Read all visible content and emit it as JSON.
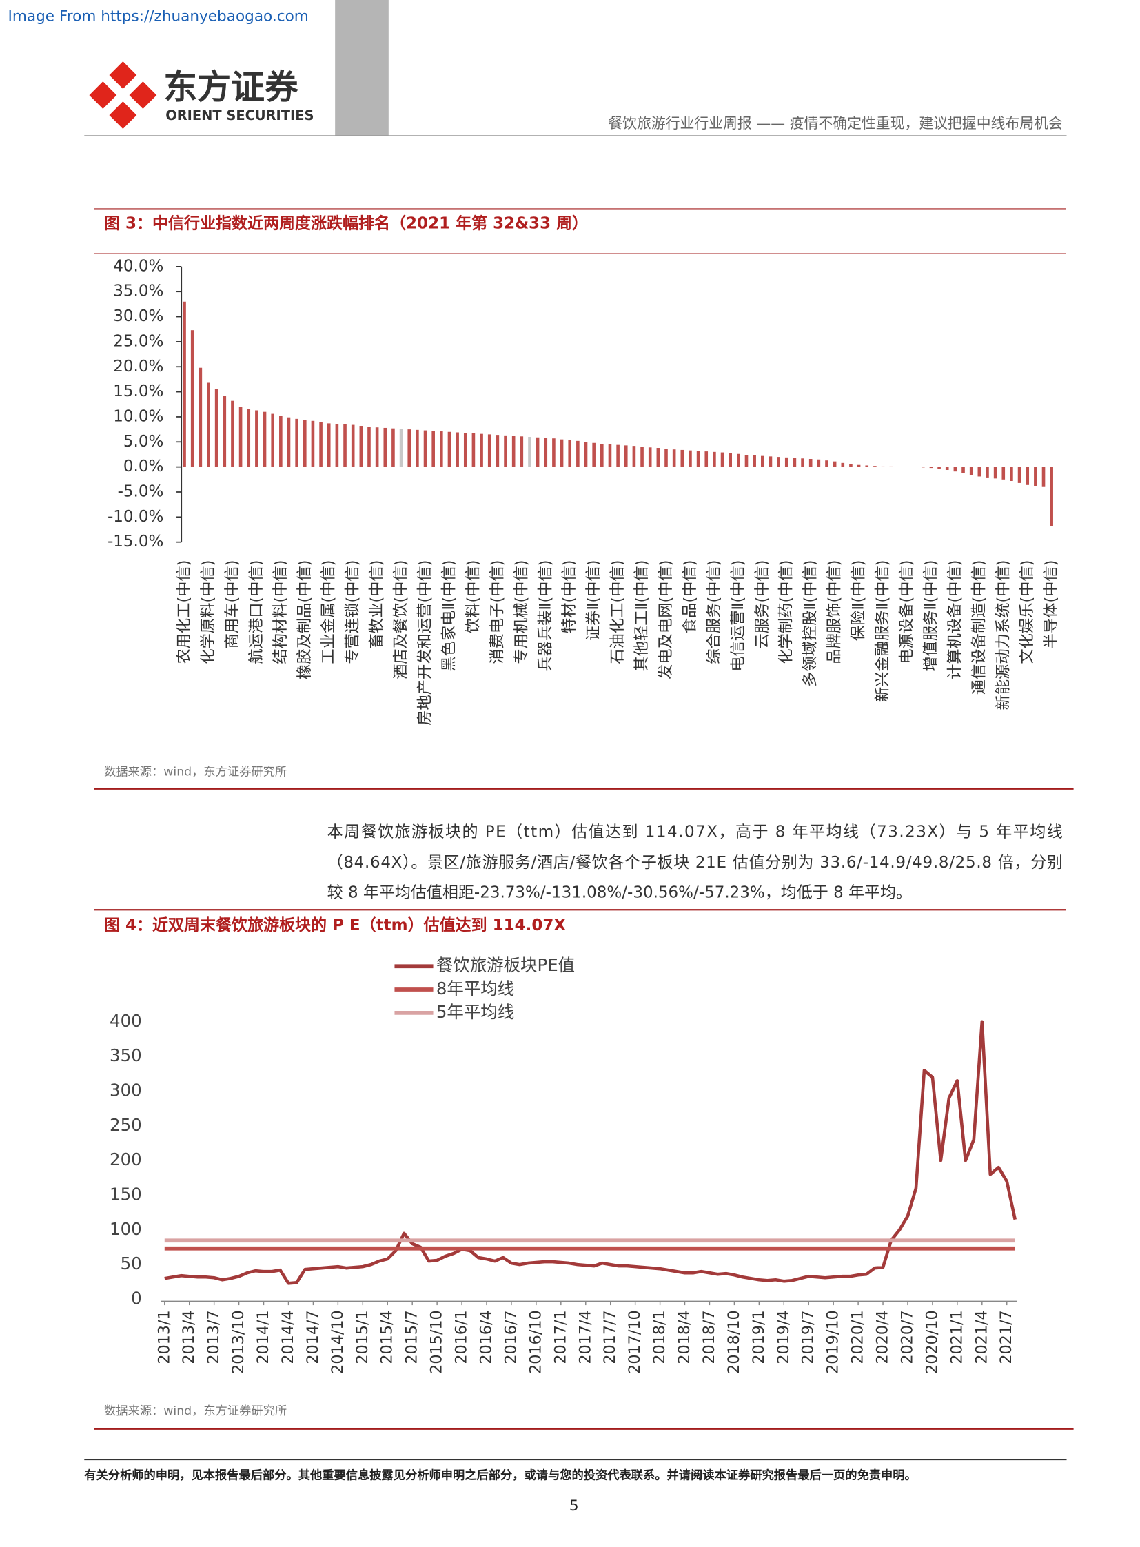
{
  "watermark": "Image From https://zhuanyebaogao.com",
  "logo": {
    "name": "东方证券",
    "name_en": "ORIENT SECURITIES"
  },
  "header": {
    "title": "餐饮旅游行业行业周报 —— 疫情不确定性重现，建议把握中线布局机会"
  },
  "paragraph": [
    "本周餐饮旅游板块的 PE（ttm）估值达到 114.07X，高于 8 年平均线（73.23X）与 5 年平均线",
    "（84.64X）。景区/旅游服务/酒店/餐饮各个子板块 21E 估值分别为 33.6/-14.9/49.8/25.8 倍，分别",
    "较 8 年平均估值相距-23.73%/-131.08%/-30.56%/-57.23%，均低于 8 年平均。"
  ],
  "footer": {
    "disclaimer": "有关分析师的申明，见本报告最后部分。其他重要信息披露见分析师申明之后部分，或请与您的投资代表联系。并请阅读本证券研究报告最后一页的免责申明。",
    "page": "5"
  },
  "chart_data": [
    {
      "type": "bar",
      "title": "图 3：中信行业指数近两周度涨跌幅排名（2021 年第 32&33 周）",
      "source": "数据来源：wind，东方证券研究所",
      "categories": [
        "农用化工(中信)",
        null,
        null,
        "化学原料(中信)",
        null,
        null,
        "商用车(中信)",
        null,
        null,
        "航运港口(中信)",
        null,
        null,
        "结构材料(中信)",
        null,
        null,
        "橡胶及制品(中信)",
        null,
        null,
        "工业金属(中信)",
        null,
        null,
        "专营连锁(中信)",
        null,
        null,
        "畜牧业(中信)",
        null,
        null,
        "酒店及餐饮(中信)",
        null,
        null,
        "房地产开发和运营(中信)",
        null,
        null,
        "黑色家电Ⅱ(中信)",
        null,
        null,
        "饮料(中信)",
        null,
        null,
        "消费电子(中信)",
        null,
        null,
        "专用机械(中信)",
        null,
        null,
        "兵器兵装Ⅱ(中信)",
        null,
        null,
        "特材(中信)",
        null,
        null,
        "证券Ⅱ(中信)",
        null,
        null,
        "石油化工(中信)",
        null,
        null,
        "其他轻工Ⅱ(中信)",
        null,
        null,
        "发电及电网(中信)",
        null,
        null,
        "食品(中信)",
        null,
        null,
        "综合服务(中信)",
        null,
        null,
        "电信运营Ⅱ(中信)",
        null,
        null,
        "云服务(中信)",
        null,
        null,
        "化学制药(中信)",
        null,
        null,
        "多领域控股Ⅱ(中信)",
        null,
        null,
        "品牌服饰(中信)",
        null,
        null,
        "保险Ⅱ(中信)",
        null,
        null,
        "新兴金融服务Ⅱ(中信)",
        null,
        null,
        "电源设备(中信)",
        null,
        null,
        "增值服务Ⅱ(中信)",
        null,
        null,
        "计算机设备(中信)",
        null,
        null,
        "通信设备制造(中信)",
        null,
        null,
        "新能源动力系统(中信)",
        null,
        null,
        "文化娱乐(中信)",
        null,
        null,
        "半导体(中信)"
      ],
      "values": [
        33.0,
        27.3,
        19.8,
        16.8,
        15.5,
        14.2,
        13.2,
        12.0,
        11.6,
        11.3,
        11.0,
        10.6,
        10.2,
        9.9,
        9.6,
        9.4,
        9.2,
        8.9,
        8.7,
        8.6,
        8.5,
        8.4,
        8.2,
        8.0,
        7.9,
        7.8,
        7.7,
        7.6,
        7.5,
        7.4,
        7.3,
        7.2,
        7.1,
        7.0,
        6.9,
        6.8,
        6.7,
        6.6,
        6.5,
        6.4,
        6.3,
        6.2,
        6.1,
        6.0,
        5.9,
        5.8,
        5.7,
        5.5,
        5.4,
        5.2,
        5.0,
        4.8,
        4.6,
        4.5,
        4.4,
        4.3,
        4.2,
        4.0,
        3.9,
        3.8,
        3.6,
        3.5,
        3.4,
        3.3,
        3.2,
        3.1,
        3.0,
        2.9,
        2.8,
        2.6,
        2.4,
        2.3,
        2.2,
        2.1,
        2.0,
        1.9,
        1.8,
        1.7,
        1.6,
        1.5,
        1.3,
        1.1,
        0.8,
        0.6,
        0.4,
        0.3,
        0.2,
        0.1,
        0.1,
        0.0,
        0.0,
        0.0,
        -0.1,
        -0.2,
        -0.4,
        -0.6,
        -0.9,
        -1.2,
        -1.6,
        -1.9,
        -2.1,
        -2.3,
        -2.5,
        -2.8,
        -3.2,
        -3.6,
        -3.8,
        -4.0,
        -11.8
      ],
      "colors": [
        "#c0504d",
        "#c0504d",
        "#c0504d",
        "#c0504d",
        "#c0504d",
        "#c0504d",
        "#c0504d",
        "#c0504d",
        "#c0504d",
        "#c0504d",
        "#c0504d",
        "#c0504d",
        "#c0504d",
        "#c0504d",
        "#c0504d",
        "#c0504d",
        "#c0504d",
        "#c0504d",
        "#c0504d",
        "#c0504d",
        "#c0504d",
        "#c0504d",
        "#c0504d",
        "#c0504d",
        "#c0504d",
        "#c0504d",
        "#c0504d",
        "#c8c8c8",
        "#c0504d",
        "#c0504d",
        "#c0504d",
        "#c0504d",
        "#c0504d",
        "#c0504d",
        "#c0504d",
        "#c0504d",
        "#c0504d",
        "#c0504d",
        "#c0504d",
        "#c0504d",
        "#c0504d",
        "#c0504d",
        "#c0504d",
        "#c8c8c8",
        "#c0504d",
        "#c0504d",
        "#c0504d",
        "#c0504d",
        "#c0504d",
        "#c0504d",
        "#c0504d",
        "#c0504d",
        "#c0504d",
        "#c0504d",
        "#c0504d",
        "#c0504d",
        "#c0504d",
        "#c0504d",
        "#c0504d",
        "#c0504d",
        "#c0504d",
        "#c0504d",
        "#c0504d",
        "#c0504d",
        "#c0504d",
        "#c0504d",
        "#c0504d",
        "#c0504d",
        "#c0504d",
        "#c0504d",
        "#c0504d",
        "#c0504d",
        "#c0504d",
        "#c0504d",
        "#c0504d",
        "#c0504d",
        "#c0504d",
        "#c0504d",
        "#c0504d",
        "#c0504d",
        "#c0504d",
        "#c0504d",
        "#c0504d",
        "#c0504d",
        "#c0504d",
        "#c0504d",
        "#c0504d",
        "#c0504d",
        "#c0504d",
        "#c0504d",
        "#c0504d",
        "#c0504d",
        "#c0504d",
        "#c0504d",
        "#c0504d",
        "#c0504d",
        "#c0504d",
        "#c0504d",
        "#c0504d",
        "#c0504d",
        "#c0504d",
        "#c0504d",
        "#c0504d",
        "#c0504d",
        "#c0504d",
        "#c0504d",
        "#c0504d",
        "#c0504d",
        "#c0504d"
      ],
      "ylim": [
        -15,
        40
      ],
      "yticks": [
        {
          "value": 40,
          "label": "40.0%"
        },
        {
          "value": 35,
          "label": "35.0%"
        },
        {
          "value": 30,
          "label": "30.0%"
        },
        {
          "value": 25,
          "label": "25.0%"
        },
        {
          "value": 20,
          "label": "20.0%"
        },
        {
          "value": 15,
          "label": "15.0%"
        },
        {
          "value": 10,
          "label": "10.0%"
        },
        {
          "value": 5,
          "label": "5.0%"
        },
        {
          "value": 0,
          "label": "0.0%"
        },
        {
          "value": -5,
          "label": "-5.0%"
        },
        {
          "value": -10,
          "label": "-10.0%"
        },
        {
          "value": -15,
          "label": "-15.0%"
        }
      ],
      "grid": false
    },
    {
      "type": "line",
      "title": "图 4：近双周末餐饮旅游板块的 P E（ttm）估值达到 114.07X",
      "source": "数据来源：wind，东方证券研究所",
      "x": [
        "2013/1",
        null,
        null,
        "2013/4",
        null,
        null,
        "2013/7",
        null,
        null,
        "2013/10",
        null,
        null,
        "2014/1",
        null,
        null,
        "2014/4",
        null,
        null,
        "2014/7",
        null,
        null,
        "2014/10",
        null,
        null,
        "2015/1",
        null,
        null,
        "2015/4",
        null,
        null,
        "2015/7",
        null,
        null,
        "2015/10",
        null,
        null,
        "2016/1",
        null,
        null,
        "2016/4",
        null,
        null,
        "2016/7",
        null,
        null,
        "2016/10",
        null,
        null,
        "2017/1",
        null,
        null,
        "2017/4",
        null,
        null,
        "2017/7",
        null,
        null,
        "2017/10",
        null,
        null,
        "2018/1",
        null,
        null,
        "2018/4",
        null,
        null,
        "2018/7",
        null,
        null,
        "2018/10",
        null,
        null,
        "2019/1",
        null,
        null,
        "2019/4",
        null,
        null,
        "2019/7",
        null,
        null,
        "2019/10",
        null,
        null,
        "2020/1",
        null,
        null,
        "2020/4",
        null,
        null,
        "2020/7",
        null,
        null,
        "2020/10",
        null,
        null,
        "2021/1",
        null,
        null,
        "2021/4",
        null,
        null,
        "2021/7",
        null
      ],
      "series": [
        {
          "name": "餐饮旅游板块PE值",
          "color": "#a33a3a",
          "values": [
            30,
            32,
            34,
            33,
            32,
            32,
            31,
            28,
            30,
            33,
            38,
            41,
            40,
            40,
            42,
            23,
            24,
            43,
            44,
            45,
            46,
            47,
            45,
            46,
            47,
            50,
            55,
            58,
            70,
            95,
            80,
            75,
            55,
            56,
            62,
            66,
            72,
            70,
            60,
            58,
            55,
            60,
            52,
            50,
            52,
            53,
            54,
            54,
            53,
            52,
            50,
            49,
            48,
            52,
            50,
            48,
            48,
            47,
            46,
            45,
            44,
            42,
            40,
            38,
            38,
            40,
            38,
            36,
            37,
            35,
            32,
            30,
            28,
            27,
            28,
            26,
            27,
            30,
            33,
            32,
            31,
            32,
            33,
            33,
            35,
            36,
            45,
            46,
            85,
            100,
            120,
            160,
            330,
            320,
            200,
            290,
            315,
            200,
            230,
            400,
            180,
            190,
            170,
            115
          ]
        },
        {
          "name": "8年平均线",
          "color": "#c0504d",
          "values": [
            73.23,
            73.23,
            73.23,
            73.23,
            73.23,
            73.23,
            73.23,
            73.23,
            73.23,
            73.23,
            73.23,
            73.23,
            73.23,
            73.23,
            73.23,
            73.23,
            73.23,
            73.23,
            73.23,
            73.23,
            73.23,
            73.23,
            73.23,
            73.23,
            73.23,
            73.23,
            73.23,
            73.23,
            73.23,
            73.23,
            73.23,
            73.23,
            73.23,
            73.23,
            73.23,
            73.23,
            73.23,
            73.23,
            73.23,
            73.23,
            73.23,
            73.23,
            73.23,
            73.23,
            73.23,
            73.23,
            73.23,
            73.23,
            73.23,
            73.23,
            73.23,
            73.23,
            73.23,
            73.23,
            73.23,
            73.23,
            73.23,
            73.23,
            73.23,
            73.23,
            73.23,
            73.23,
            73.23,
            73.23,
            73.23,
            73.23,
            73.23,
            73.23,
            73.23,
            73.23,
            73.23,
            73.23,
            73.23,
            73.23,
            73.23,
            73.23,
            73.23,
            73.23,
            73.23,
            73.23,
            73.23,
            73.23,
            73.23,
            73.23,
            73.23,
            73.23,
            73.23,
            73.23,
            73.23,
            73.23,
            73.23,
            73.23,
            73.23,
            73.23,
            73.23,
            73.23,
            73.23,
            73.23,
            73.23,
            73.23,
            73.23,
            73.23,
            73.23,
            73.23
          ]
        },
        {
          "name": "5年平均线",
          "color": "#d9a3a3",
          "values": [
            84.64,
            84.64,
            84.64,
            84.64,
            84.64,
            84.64,
            84.64,
            84.64,
            84.64,
            84.64,
            84.64,
            84.64,
            84.64,
            84.64,
            84.64,
            84.64,
            84.64,
            84.64,
            84.64,
            84.64,
            84.64,
            84.64,
            84.64,
            84.64,
            84.64,
            84.64,
            84.64,
            84.64,
            84.64,
            84.64,
            84.64,
            84.64,
            84.64,
            84.64,
            84.64,
            84.64,
            84.64,
            84.64,
            84.64,
            84.64,
            84.64,
            84.64,
            84.64,
            84.64,
            84.64,
            84.64,
            84.64,
            84.64,
            84.64,
            84.64,
            84.64,
            84.64,
            84.64,
            84.64,
            84.64,
            84.64,
            84.64,
            84.64,
            84.64,
            84.64,
            84.64,
            84.64,
            84.64,
            84.64,
            84.64,
            84.64,
            84.64,
            84.64,
            84.64,
            84.64,
            84.64,
            84.64,
            84.64,
            84.64,
            84.64,
            84.64,
            84.64,
            84.64,
            84.64,
            84.64,
            84.64,
            84.64,
            84.64,
            84.64,
            84.64,
            84.64,
            84.64,
            84.64,
            84.64,
            84.64,
            84.64,
            84.64,
            84.64,
            84.64,
            84.64,
            84.64,
            84.64,
            84.64,
            84.64,
            84.64,
            84.64,
            84.64,
            84.64,
            84.64
          ]
        }
      ],
      "ylim": [
        0,
        400
      ],
      "yticks": [
        0,
        50,
        100,
        150,
        200,
        250,
        300,
        350,
        400
      ],
      "grid": false,
      "legend": "top"
    }
  ]
}
